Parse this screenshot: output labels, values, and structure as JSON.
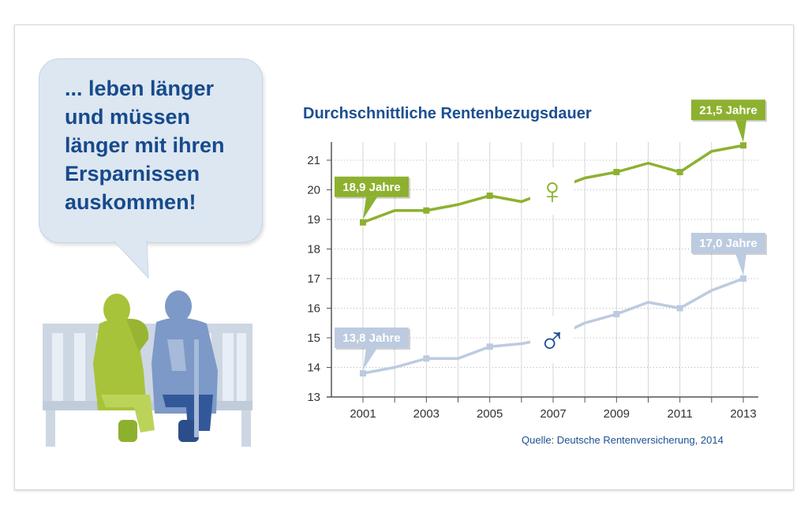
{
  "speech_bubble": {
    "lines": [
      "... leben länger",
      "und müssen",
      "länger mit ihren",
      "Ersparnissen",
      "auskommen!"
    ]
  },
  "symbols": {
    "female": "♀",
    "male": "♂"
  },
  "colors": {
    "green": "#8db12f",
    "light_blue": "#bccbe0",
    "dark_blue": "#1d4f91",
    "bench": "#cdd7e3"
  },
  "icons": [
    "speech-bubble",
    "bench-icon",
    "woman-figure-icon",
    "man-figure-icon",
    "female-symbol-icon",
    "male-symbol-icon"
  ],
  "chart_data": {
    "type": "line",
    "title": "Durchschnittliche Rentenbezugsdauer",
    "source": "Quelle: Deutsche Rentenversicherung, 2014",
    "x": [
      2001,
      2002,
      2003,
      2004,
      2005,
      2006,
      2007,
      2008,
      2009,
      2010,
      2011,
      2012,
      2013
    ],
    "x_tick_labels": [
      "2001",
      "2003",
      "2005",
      "2007",
      "2009",
      "2011",
      "2013"
    ],
    "y_tick_labels": [
      "13",
      "14",
      "15",
      "16",
      "17",
      "18",
      "19",
      "20",
      "21"
    ],
    "ylim": [
      13,
      21.5
    ],
    "grid": true,
    "series": [
      {
        "symbol": "female",
        "color": "#8db12f",
        "values": [
          18.9,
          19.3,
          19.3,
          19.5,
          19.8,
          19.6,
          20.0,
          20.4,
          20.6,
          20.9,
          20.6,
          21.3,
          21.5
        ],
        "callouts": [
          {
            "text": "18,9 Jahre",
            "x": 2001
          },
          {
            "text": "21,5 Jahre",
            "x": 2013
          }
        ]
      },
      {
        "symbol": "male",
        "color": "#bccbe0",
        "values": [
          13.8,
          14.0,
          14.3,
          14.3,
          14.7,
          14.8,
          15.0,
          15.5,
          15.8,
          16.2,
          16.0,
          16.6,
          17.0
        ],
        "callouts": [
          {
            "text": "13,8 Jahre",
            "x": 2001
          },
          {
            "text": "17,0 Jahre",
            "x": 2013
          }
        ]
      }
    ]
  }
}
